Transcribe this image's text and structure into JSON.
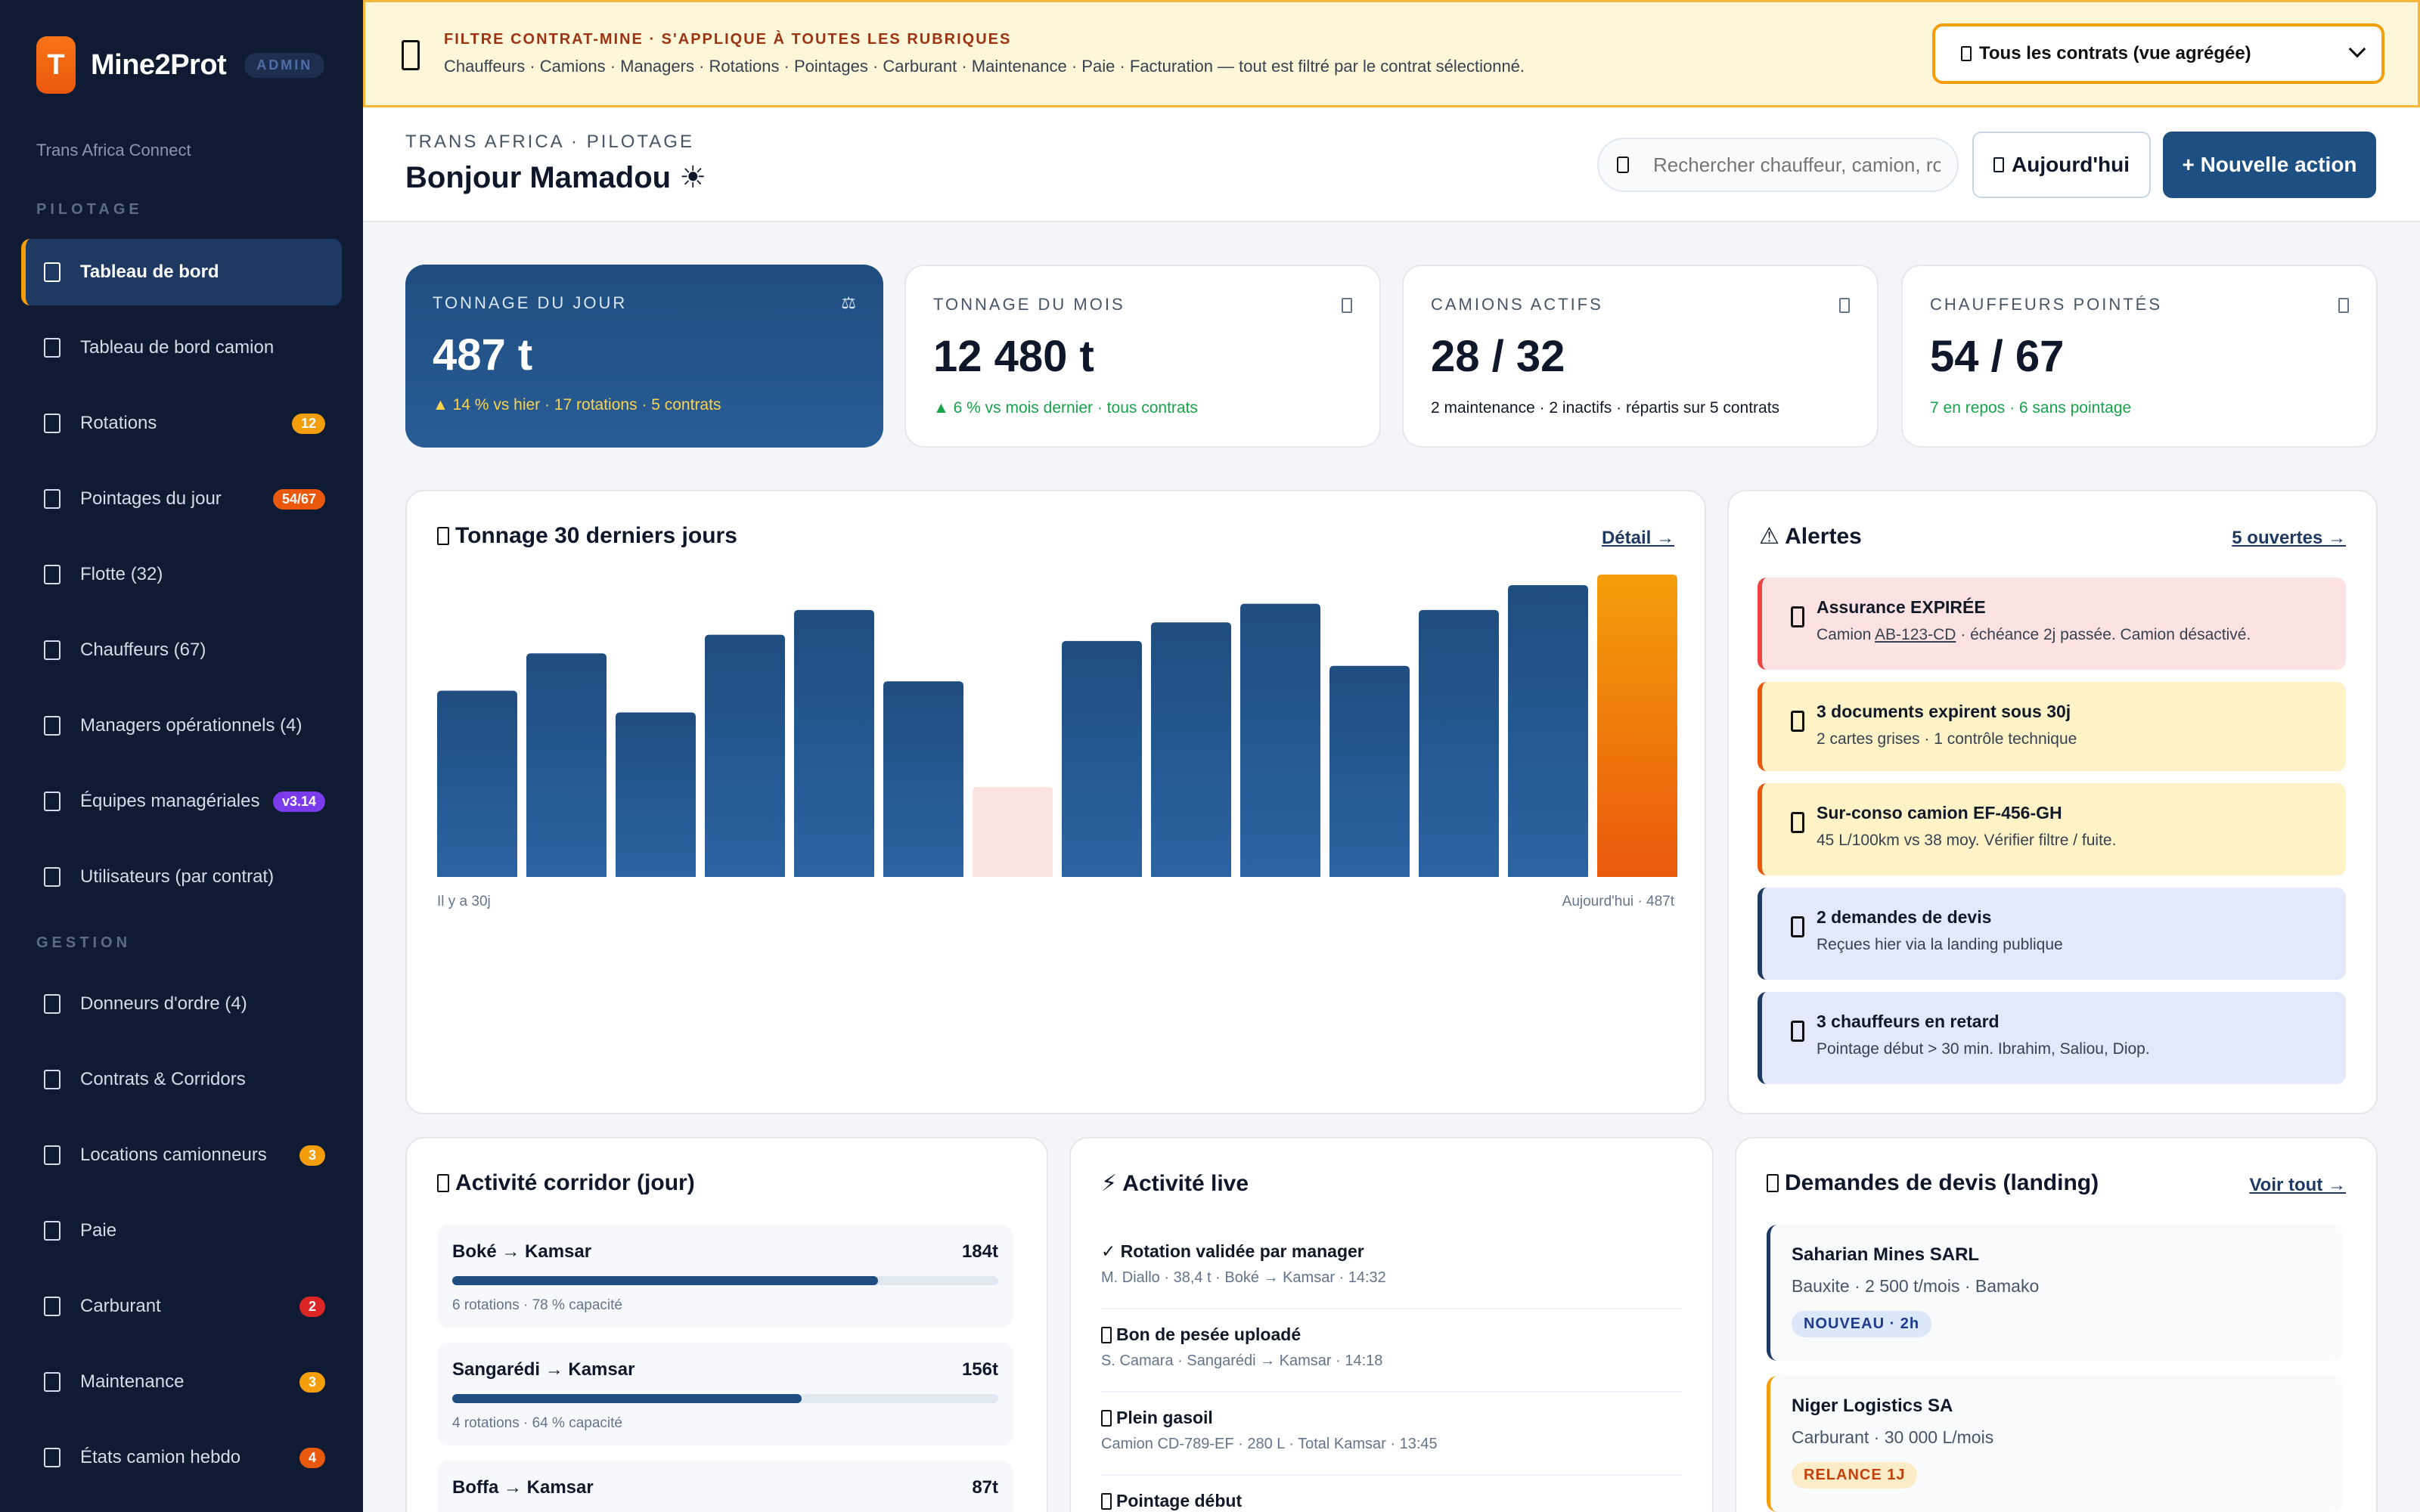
{
  "brand": {
    "name": "Mine2Prot",
    "logo_letter": "T",
    "badge": "ADMIN",
    "org": "Trans Africa Connect"
  },
  "sidebar": {
    "section_pilotage": "PILOTAGE",
    "section_gestion": "GESTION",
    "pilotage_items": [
      {
        "label": "Tableau de bord",
        "badge": "",
        "active": true
      },
      {
        "label": "Tableau de bord camion",
        "badge": ""
      },
      {
        "label": "Rotations",
        "badge": "12",
        "badge_color": "#f59e0b"
      },
      {
        "label": "Pointages du jour",
        "badge": "54/67",
        "badge_color": "#ea580c"
      },
      {
        "label": "Flotte (32)",
        "badge": ""
      },
      {
        "label": "Chauffeurs (67)",
        "badge": ""
      },
      {
        "label": "Managers opérationnels (4)",
        "badge": ""
      },
      {
        "label": "Équipes managériales",
        "badge": "v3.14",
        "badge_color": "#7c3aed"
      },
      {
        "label": "Utilisateurs (par contrat)",
        "badge": ""
      }
    ],
    "gestion_items": [
      {
        "label": "Donneurs d'ordre (4)",
        "badge": ""
      },
      {
        "label": "Contrats & Corridors",
        "badge": ""
      },
      {
        "label": "Locations camionneurs",
        "badge": "3",
        "badge_color": "#f59e0b"
      },
      {
        "label": "Paie",
        "badge": ""
      },
      {
        "label": "Carburant",
        "badge": "2",
        "badge_color": "#dc2626"
      },
      {
        "label": "Maintenance",
        "badge": "3",
        "badge_color": "#f59e0b"
      },
      {
        "label": "États camion hebdo",
        "badge": "4",
        "badge_color": "#ea580c"
      }
    ]
  },
  "filter": {
    "title": "FILTRE CONTRAT-MINE · S'APPLIQUE À TOUTES LES RUBRIQUES",
    "desc": "Chauffeurs · Camions · Managers · Rotations · Pointages · Carburant · Maintenance · Paie · Facturation — tout est filtré par le contrat sélectionné.",
    "selected": "Tous les contrats (vue agrégée)"
  },
  "header": {
    "breadcrumb": "TRANS AFRICA · PILOTAGE",
    "greeting": "Bonjour Mamadou ☀",
    "search_placeholder": "Rechercher chauffeur, camion, rotation…",
    "today": "Aujourd'hui",
    "new_action": "+ Nouvelle action"
  },
  "kpis": [
    {
      "label": "TONNAGE DU JOUR",
      "value": "487 t",
      "sub": "▲ 14 % vs hier · 17 rotations · 5 contrats",
      "icon": "scale-icon",
      "icon_glyph": "⚖",
      "sub_color": "#fcd34d"
    },
    {
      "label": "TONNAGE DU MOIS",
      "value": "12 480 t",
      "sub": "▲ 6 % vs mois dernier · tous contrats",
      "icon": "calendar-icon",
      "sub_color": "#16a34a"
    },
    {
      "label": "CAMIONS ACTIFS",
      "value": "28 / 32",
      "sub": "2 maintenance · 2 inactifs · répartis sur 5 contrats",
      "icon": "truck-icon",
      "sub_color": "#111827"
    },
    {
      "label": "CHAUFFEURS POINTÉS",
      "value": "54 / 67",
      "sub": "7 en repos · 6 sans pointage",
      "icon": "user-icon",
      "sub_color": "#16a34a"
    }
  ],
  "tonnage_panel": {
    "title": "Tonnage 30 derniers jours",
    "link": "Détail →",
    "axis_start": "Il y a 30j",
    "axis_end": "Aujourd'hui · 487t"
  },
  "chart_data": {
    "type": "bar",
    "title": "Tonnage 30 derniers jours",
    "ymax": 487,
    "values": [
      300,
      360,
      265,
      390,
      430,
      315,
      145,
      380,
      410,
      440,
      340,
      430,
      470,
      487
    ],
    "highlight": {
      "low_index": 6,
      "today_index": 13
    }
  },
  "alerts_panel": {
    "title": "⚠ Alertes",
    "link": "5 ouvertes →",
    "items": [
      {
        "title": "Assurance EXPIRÉE",
        "desc_pre": "Camion ",
        "desc_link": "AB-123-CD",
        "desc_post": " · échéance 2j passée. Camion désactivé.",
        "bg": "#fde2e2",
        "border": "#ef4444"
      },
      {
        "title": "3 documents expirent sous 30j",
        "desc_pre": "2 cartes grises · 1 contrôle technique",
        "desc_link": "",
        "desc_post": "",
        "bg": "#fdf3c7",
        "border": "#ea580c"
      },
      {
        "title": "Sur-conso camion EF-456-GH",
        "desc_pre": "45 L/100km vs 38 moy. Vérifier filtre / fuite.",
        "desc_link": "",
        "desc_post": "",
        "bg": "#fdf3c7",
        "border": "#ea580c"
      },
      {
        "title": "2 demandes de devis",
        "desc_pre": "Reçues hier via la landing publique",
        "desc_link": "",
        "desc_post": "",
        "bg": "#e3e8fb",
        "border": "#1e3a62"
      },
      {
        "title": "3 chauffeurs en retard",
        "desc_pre": "Pointage début > 30 min. Ibrahim, Saliou, Diop.",
        "desc_link": "",
        "desc_post": "",
        "bg": "#e3e8fb",
        "border": "#1e3a62"
      }
    ]
  },
  "corridor_panel": {
    "title": "Activité corridor (jour)",
    "items": [
      {
        "name": "Boké → Kamsar",
        "value": "184t",
        "sub": "6 rotations · 78 % capacité",
        "pct": 78
      },
      {
        "name": "Sangarédi → Kamsar",
        "value": "156t",
        "sub": "4 rotations · 64 % capacité",
        "pct": 64
      },
      {
        "name": "Boffa → Kamsar",
        "value": "87t",
        "sub": "",
        "pct": 0
      }
    ]
  },
  "live_panel": {
    "title": "⚡ Activité live",
    "items": [
      {
        "title": "✓ Rotation validée par manager",
        "sub": "M. Diallo · 38,4 t · Boké → Kamsar · 14:32",
        "icon": ""
      },
      {
        "title": "Bon de pesée uploadé",
        "sub": "S. Camara · Sangarédi → Kamsar · 14:18",
        "icon": "document-icon"
      },
      {
        "title": "Plein gasoil",
        "sub": "Camion CD-789-EF · 280 L · Total Kamsar · 13:45",
        "icon": "fuel-icon"
      },
      {
        "title": "Pointage début",
        "sub": "",
        "icon": "clock-icon"
      }
    ]
  },
  "quotes_panel": {
    "title": "Demandes de devis (landing)",
    "link": "Voir tout →",
    "items": [
      {
        "name": "Saharian Mines SARL",
        "desc": "Bauxite · 2 500 t/mois · Bamako",
        "tag": "NOUVEAU · 2h",
        "tag_bg": "#dbe7fb",
        "tag_color": "#1e3a8a",
        "border": "#1e3a62"
      },
      {
        "name": "Niger Logistics SA",
        "desc": "Carburant · 30 000 L/mois",
        "tag": "RELANCE 1J",
        "tag_bg": "#fdecc8",
        "tag_color": "#c2410c",
        "border": "#f59e0b"
      }
    ]
  }
}
